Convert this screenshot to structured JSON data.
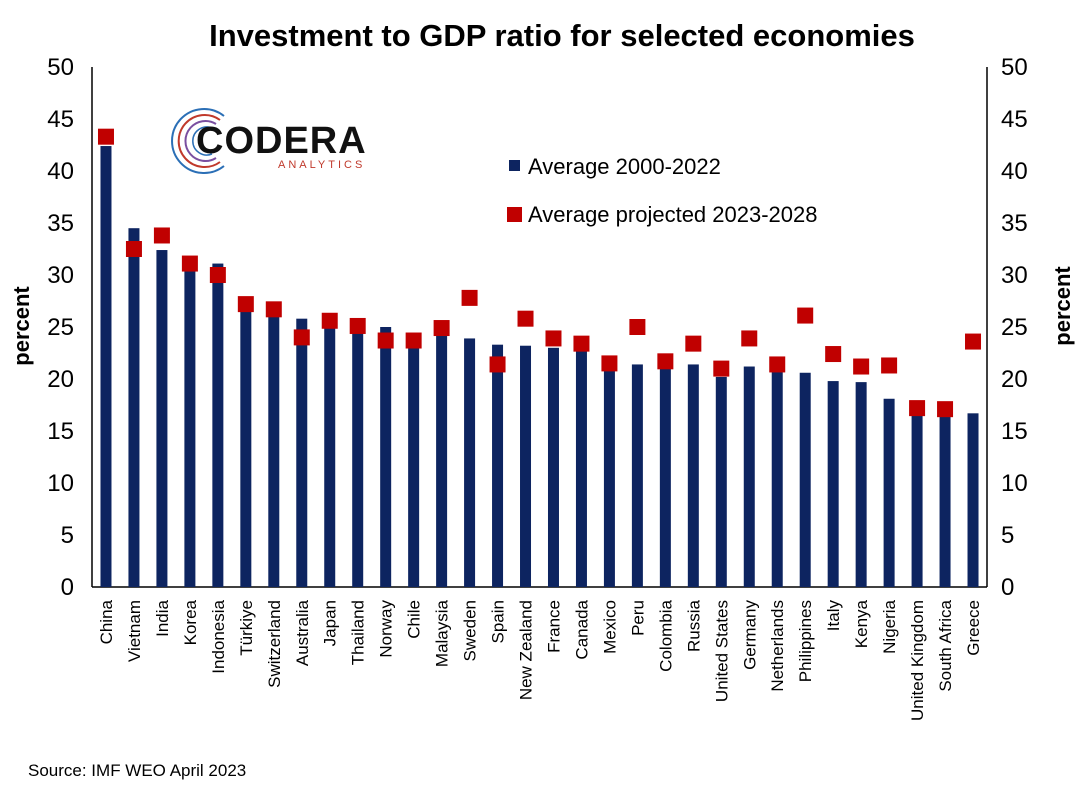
{
  "chart_data": {
    "type": "bar",
    "title": "Investment to GDP ratio for selected economies",
    "ylabel_left": "percent",
    "ylabel_right": "percent",
    "ylim": [
      0,
      50
    ],
    "yticks": [
      "0",
      "5",
      "10",
      "15",
      "20",
      "25",
      "30",
      "35",
      "40",
      "45",
      "50"
    ],
    "categories": [
      "China",
      "Vietnam",
      "India",
      "Korea",
      "Indonesia",
      "Türkiye",
      "Switzerland",
      "Australia",
      "Japan",
      "Thailand",
      "Norway",
      "Chile",
      "Malaysia",
      "Sweden",
      "Spain",
      "New Zealand",
      "France",
      "Canada",
      "Mexico",
      "Peru",
      "Colombia",
      "Russia",
      "United States",
      "Germany",
      "Netherlands",
      "Philippines",
      "Italy",
      "Kenya",
      "Nigeria",
      "United Kingdom",
      "South Africa",
      "Greece"
    ],
    "series": [
      {
        "name": "Average 2000-2022",
        "mark": "bar",
        "color": "#0d2460",
        "values": [
          42.4,
          34.5,
          32.4,
          30.6,
          31.1,
          26.7,
          26.3,
          25.8,
          25.3,
          24.7,
          25.0,
          23.1,
          24.3,
          23.9,
          23.3,
          23.2,
          23.0,
          22.7,
          21.0,
          21.4,
          21.2,
          21.4,
          20.2,
          21.2,
          21.1,
          20.6,
          19.8,
          19.7,
          18.1,
          16.7,
          16.4,
          16.7
        ]
      },
      {
        "name": "Average projected 2023-2028",
        "mark": "square",
        "color": "#c00000",
        "values": [
          43.3,
          32.5,
          33.8,
          31.1,
          30.0,
          27.2,
          26.7,
          24.0,
          25.6,
          25.1,
          23.7,
          23.7,
          24.9,
          27.8,
          21.4,
          25.8,
          23.9,
          23.4,
          21.5,
          25.0,
          21.7,
          23.4,
          21.0,
          23.9,
          21.4,
          26.1,
          22.4,
          21.2,
          21.3,
          17.2,
          17.1,
          23.6
        ]
      }
    ],
    "legend_position": "top-center",
    "grid": false
  },
  "logo": {
    "main": "CODERA",
    "sub": "ANALYTICS"
  },
  "source": "Source: IMF WEO April 2023"
}
